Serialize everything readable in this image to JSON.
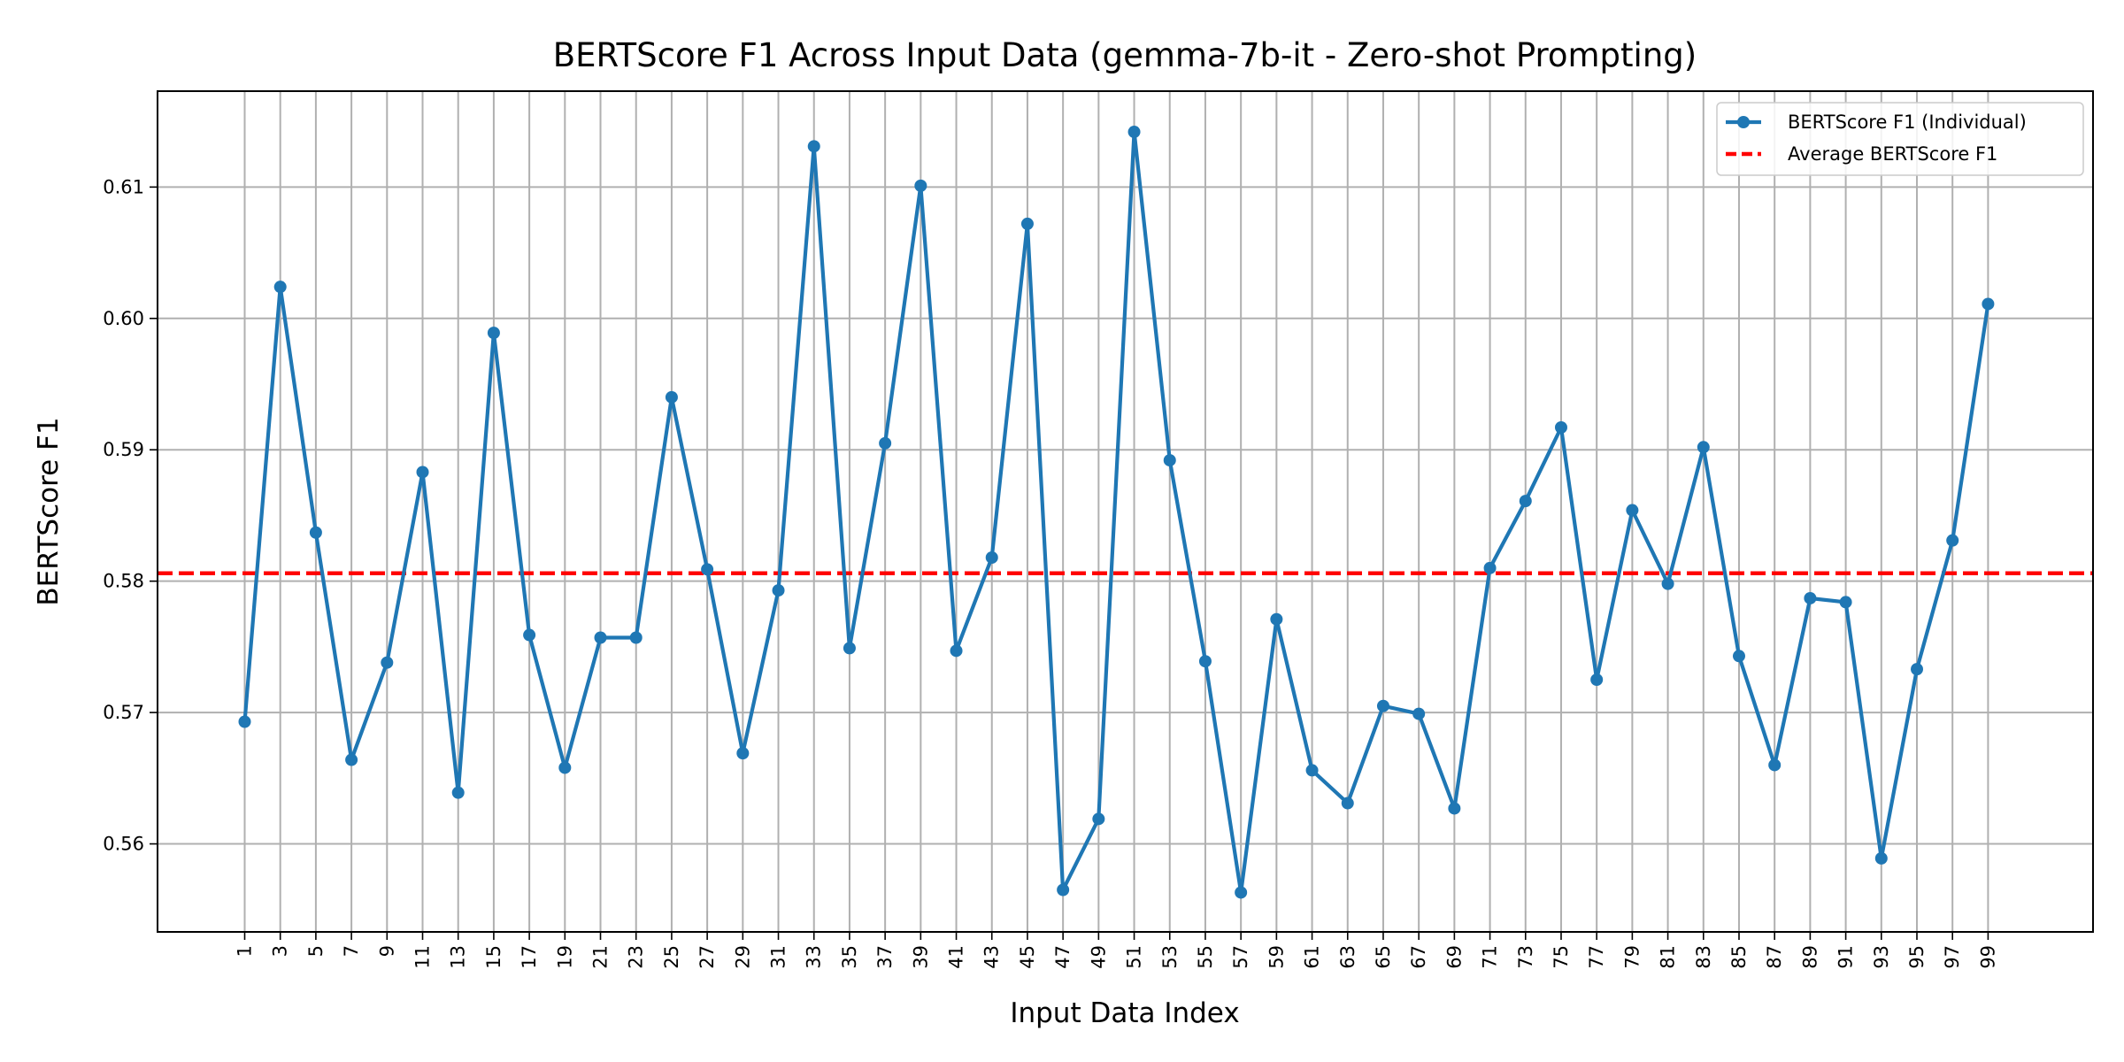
{
  "chart_data": {
    "type": "line",
    "title": "BERTScore F1 Across Input Data (gemma-7b-it - Zero-shot Prompting)",
    "xlabel": "Input Data Index",
    "ylabel": "BERTScore F1",
    "x_ticks": [
      1,
      3,
      5,
      7,
      9,
      11,
      13,
      15,
      17,
      19,
      21,
      23,
      25,
      27,
      29,
      31,
      33,
      35,
      37,
      39,
      41,
      43,
      45,
      47,
      49,
      51,
      53,
      55,
      57,
      59,
      61,
      63,
      65,
      67,
      69,
      71,
      73,
      75,
      77,
      79,
      81,
      83,
      85,
      87,
      89,
      91,
      93,
      95,
      97,
      99
    ],
    "y_ticks": [
      0.56,
      0.57,
      0.58,
      0.59,
      0.6,
      0.61
    ],
    "y_tick_labels": [
      "0.56",
      "0.57",
      "0.58",
      "0.59",
      "0.60",
      "0.61"
    ],
    "xlim": [
      -3.9,
      104.9
    ],
    "ylim": [
      0.5533,
      0.6173
    ],
    "grid": true,
    "legend_position": "top-right",
    "series": [
      {
        "name": "BERTScore F1 (Individual)",
        "color": "#1f77b4",
        "marker": "circle",
        "x": [
          1,
          3,
          5,
          7,
          9,
          11,
          13,
          15,
          17,
          19,
          21,
          23,
          25,
          27,
          29,
          31,
          33,
          35,
          37,
          39,
          41,
          43,
          45,
          47,
          49,
          51,
          53,
          55,
          57,
          59,
          61,
          63,
          65,
          67,
          69,
          71,
          73,
          75,
          77,
          79,
          81,
          83,
          85,
          87,
          89,
          91,
          93,
          95,
          97,
          99
        ],
        "values": [
          0.5693,
          0.6024,
          0.5837,
          0.5664,
          0.5738,
          0.5883,
          0.5639,
          0.5989,
          0.5759,
          0.5658,
          0.5757,
          0.5757,
          0.594,
          0.5809,
          0.5669,
          0.5793,
          0.6131,
          0.5749,
          0.5905,
          0.6101,
          0.5747,
          0.5818,
          0.6072,
          0.5565,
          0.5619,
          0.6142,
          0.5892,
          0.5739,
          0.5563,
          0.5771,
          0.5656,
          0.5631,
          0.5705,
          0.5699,
          0.5627,
          0.581,
          0.5861,
          0.5917,
          0.5725,
          0.5854,
          0.5798,
          0.5902,
          0.5743,
          0.566,
          0.5787,
          0.5784,
          0.5589,
          0.5733,
          0.5831,
          0.6011
        ]
      },
      {
        "name": "Average BERTScore F1",
        "color": "#ff0000",
        "style": "dashed",
        "value": 0.5806
      }
    ]
  }
}
